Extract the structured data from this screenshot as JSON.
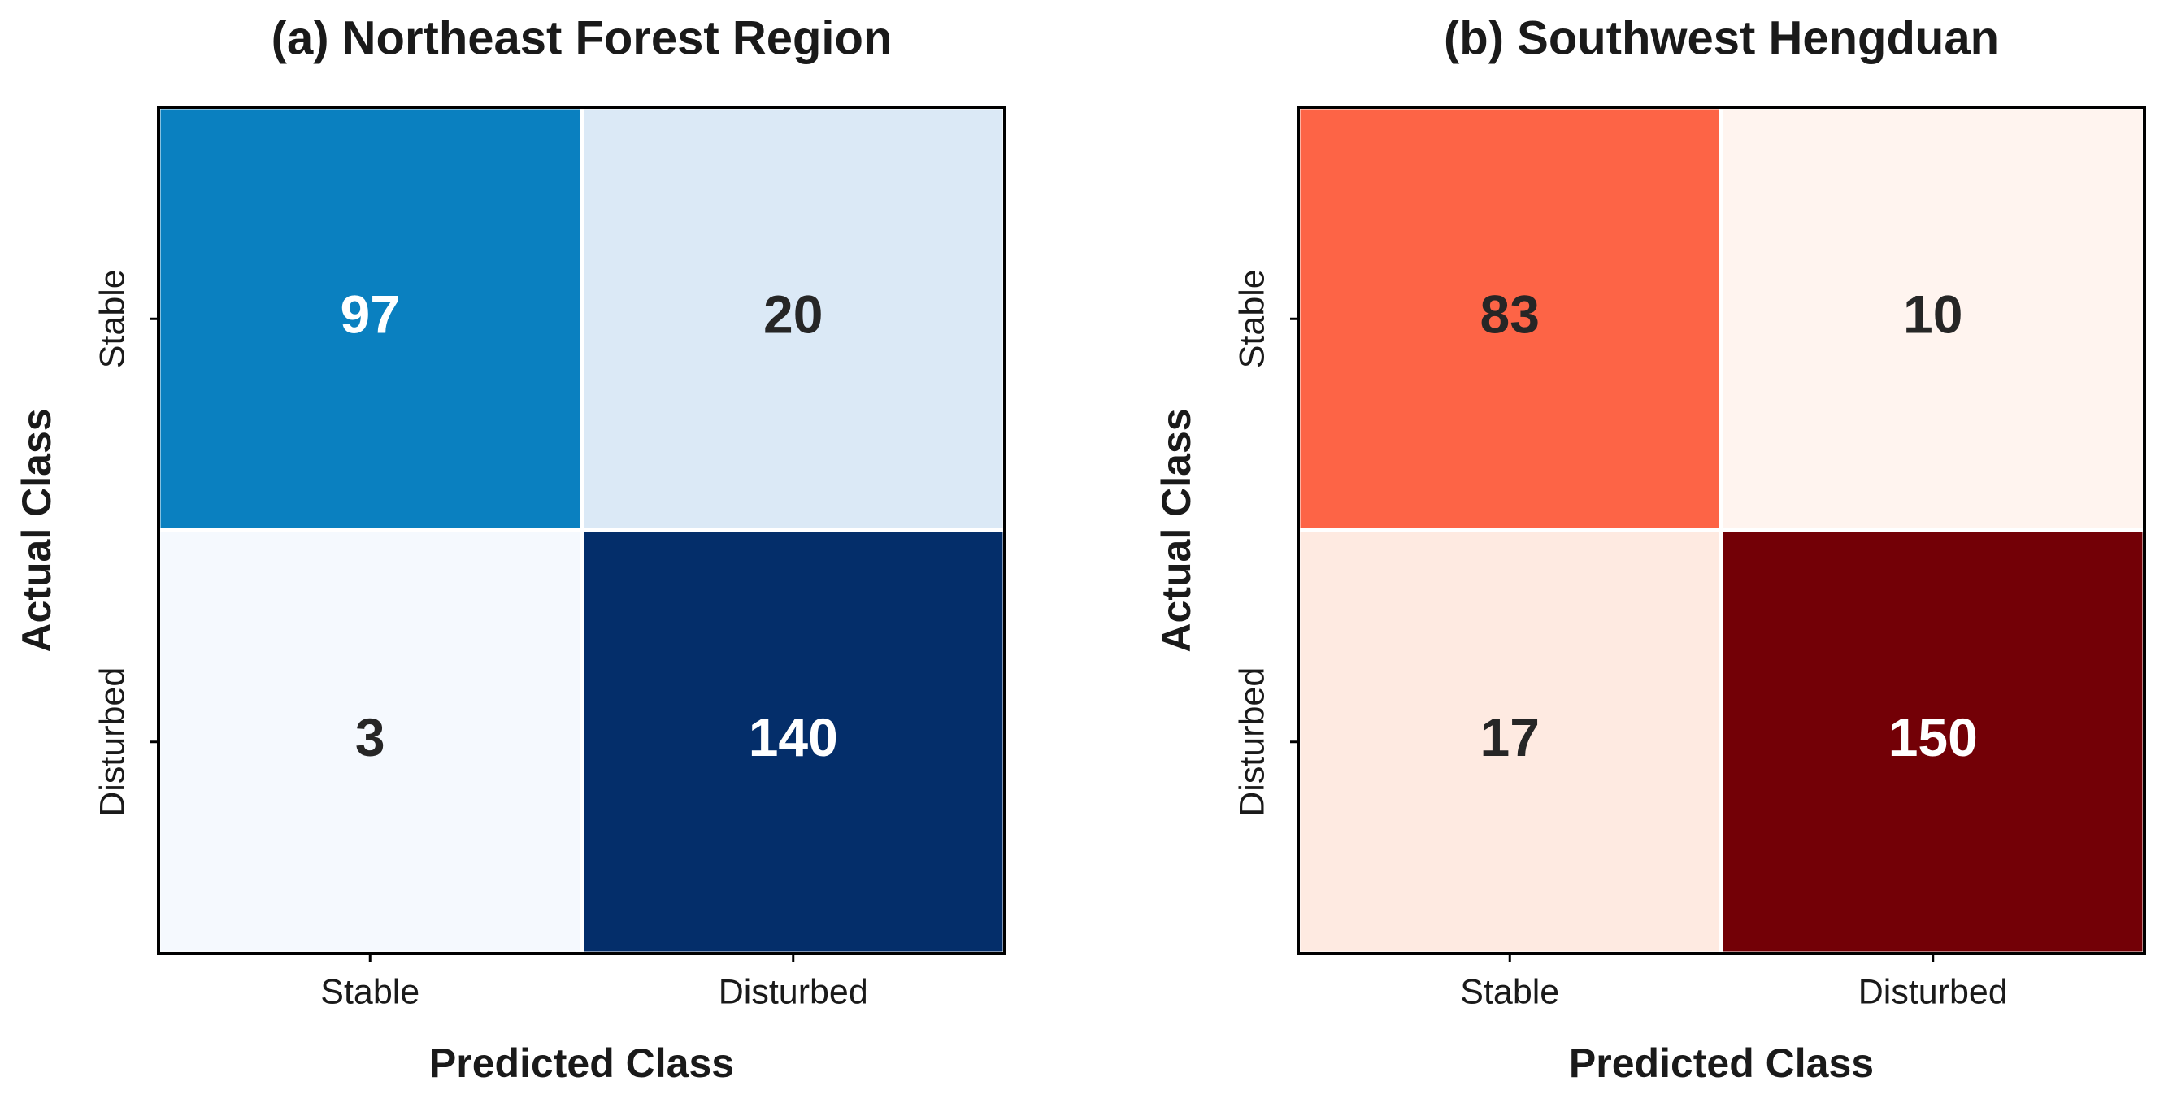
{
  "chart_data": [
    {
      "type": "heatmap",
      "title": "(a) Northeast Forest Region",
      "x_label": "Predicted Class",
      "y_label": "Actual Class",
      "x_categories": [
        "Stable",
        "Disturbed"
      ],
      "y_categories": [
        "Stable",
        "Disturbed"
      ],
      "values": [
        [
          97,
          20
        ],
        [
          3,
          140
        ]
      ],
      "colors": [
        [
          "#0a80c0",
          "#dbe9f6"
        ],
        [
          "#f5f9fe",
          "#042e6a"
        ]
      ]
    },
    {
      "type": "heatmap",
      "title": "(b) Southwest Hengduan",
      "x_label": "Predicted Class",
      "y_label": "Actual Class",
      "x_categories": [
        "Stable",
        "Disturbed"
      ],
      "y_categories": [
        "Stable",
        "Disturbed"
      ],
      "values": [
        [
          83,
          10
        ],
        [
          17,
          150
        ]
      ],
      "colors": [
        [
          "#fd6446",
          "#fff4ef"
        ],
        [
          "#feeae1",
          "#730006"
        ]
      ]
    }
  ]
}
